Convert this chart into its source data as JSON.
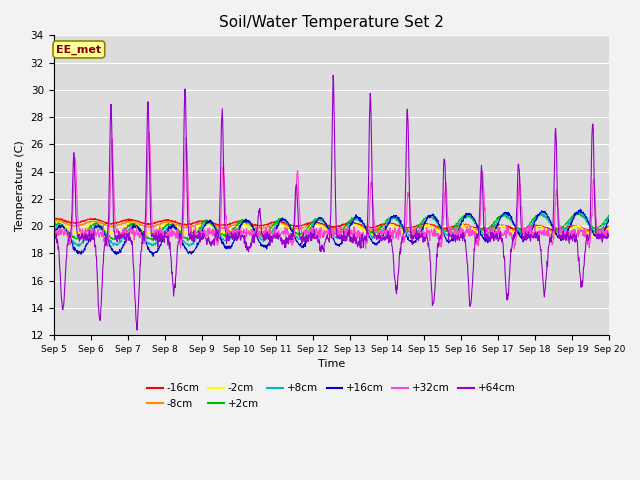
{
  "title": "Soil/Water Temperature Set 2",
  "xlabel": "Time",
  "ylabel": "Temperature (C)",
  "ylim": [
    12,
    34
  ],
  "xlim": [
    0,
    15
  ],
  "x_tick_labels": [
    "Sep 5",
    "Sep 6",
    "Sep 7",
    "Sep 8",
    "Sep 9",
    "Sep 10",
    "Sep 11",
    "Sep 12",
    "Sep 13",
    "Sep 14",
    "Sep 15",
    "Sep 16",
    "Sep 17",
    "Sep 18",
    "Sep 19",
    "Sep 20"
  ],
  "background_color": "#dcdcdc",
  "plot_bg_color": "#dcdcdc",
  "series": [
    {
      "label": "-16cm",
      "color": "#ff0000"
    },
    {
      "label": "-8cm",
      "color": "#ff8800"
    },
    {
      "label": "-2cm",
      "color": "#ffff00"
    },
    {
      "label": "+2cm",
      "color": "#00bb00"
    },
    {
      "label": "+8cm",
      "color": "#00bbbb"
    },
    {
      "label": "+16cm",
      "color": "#0000cc"
    },
    {
      "label": "+32cm",
      "color": "#ff44cc"
    },
    {
      "label": "+64cm",
      "color": "#9900cc"
    }
  ],
  "ee_met_box": {
    "text": "EE_met",
    "facecolor": "#ffff99",
    "edgecolor": "#888800",
    "textcolor": "#880000"
  },
  "grid_color": "#ffffff",
  "title_fontsize": 11,
  "legend_ncol_row1": 6,
  "legend_ncol_row2": 2
}
